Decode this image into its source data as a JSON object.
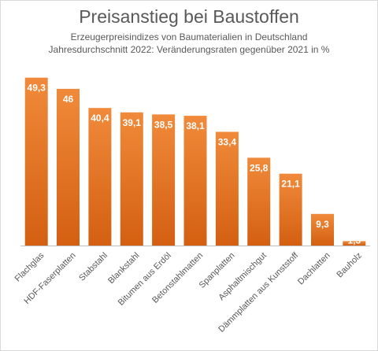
{
  "chart_data": {
    "type": "bar",
    "title": "Preisanstieg bei Baustoffen",
    "subtitle_lines": [
      "Erzeugerpreisindizes von Baumaterialien in Deutschland",
      "Jahresdurchschnitt 2022: Veränderungsraten gegenüber  2021 in %"
    ],
    "categories": [
      "Flachglas",
      "HDF-Faserplatten",
      "Stabstahl",
      "Blankstahl",
      "Bitumen aus Erdöl",
      "Betonstahlmatten",
      "Spanplatten",
      "Asphaltmischgut",
      "Dämmplatten aus Kunststoff",
      "Dachlatten",
      "Bauholz"
    ],
    "values": [
      49.3,
      46,
      40.4,
      39.1,
      38.5,
      38.1,
      33.4,
      25.8,
      21.1,
      9.3,
      1.3
    ],
    "value_labels": [
      "49,3",
      "46",
      "40,4",
      "39,1",
      "38,5",
      "38,1",
      "33,4",
      "25,8",
      "21,1",
      "9,3",
      "1,3"
    ],
    "xlabel": "",
    "ylabel": "",
    "ylim": [
      0,
      55
    ],
    "grid": false,
    "legend": "none",
    "colors": {
      "bar_top": "#f08a3a",
      "bar_bottom": "#d45f12",
      "axis": "#bfbfbf"
    }
  }
}
